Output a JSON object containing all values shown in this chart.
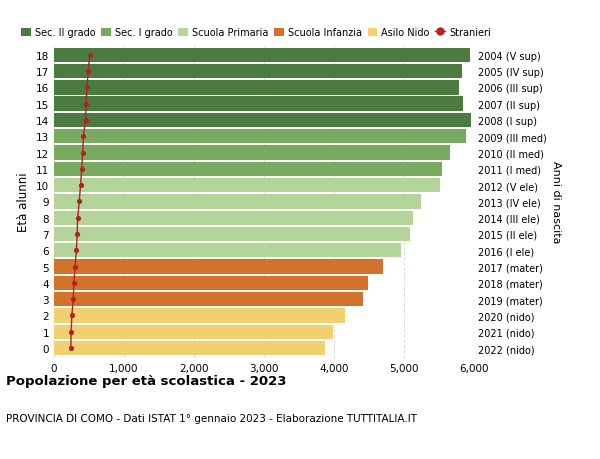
{
  "ages": [
    18,
    17,
    16,
    15,
    14,
    13,
    12,
    11,
    10,
    9,
    8,
    7,
    6,
    5,
    4,
    3,
    2,
    1,
    0
  ],
  "right_labels": [
    "2004 (V sup)",
    "2005 (IV sup)",
    "2006 (III sup)",
    "2007 (II sup)",
    "2008 (I sup)",
    "2009 (III med)",
    "2010 (II med)",
    "2011 (I med)",
    "2012 (V ele)",
    "2013 (IV ele)",
    "2014 (III ele)",
    "2015 (II ele)",
    "2016 (I ele)",
    "2017 (mater)",
    "2018 (mater)",
    "2019 (mater)",
    "2020 (nido)",
    "2021 (nido)",
    "2022 (nido)"
  ],
  "bar_values": [
    5950,
    5830,
    5790,
    5840,
    5960,
    5880,
    5660,
    5540,
    5510,
    5240,
    5130,
    5080,
    4960,
    4700,
    4480,
    4420,
    4160,
    3990,
    3870
  ],
  "stranieri_values": [
    510,
    490,
    470,
    460,
    450,
    420,
    410,
    395,
    380,
    360,
    340,
    330,
    320,
    300,
    285,
    275,
    255,
    245,
    240
  ],
  "bar_colors": [
    "#4a7c3f",
    "#4a7c3f",
    "#4a7c3f",
    "#4a7c3f",
    "#4a7c3f",
    "#7aaa5f",
    "#7aaa5f",
    "#7aaa5f",
    "#b5d49a",
    "#b5d49a",
    "#b5d49a",
    "#b5d49a",
    "#b5d49a",
    "#d4712a",
    "#d4712a",
    "#d4712a",
    "#f0d070",
    "#f0d070",
    "#f0d070"
  ],
  "legend_labels": [
    "Sec. II grado",
    "Sec. I grado",
    "Scuola Primaria",
    "Scuola Infanzia",
    "Asilo Nido",
    "Stranieri"
  ],
  "legend_colors": [
    "#4a7c3f",
    "#7aaa5f",
    "#b5d49a",
    "#d4712a",
    "#f0d070",
    "#b22222"
  ],
  "stranieri_color": "#b22222",
  "title": "Popolazione per età scolastica - 2023",
  "subtitle": "PROVINCIA DI COMO - Dati ISTAT 1° gennaio 2023 - Elaborazione TUTTITALIA.IT",
  "ylabel": "Età alunni",
  "right_ylabel": "Anni di nascita",
  "xlim": [
    0,
    6000
  ],
  "xticks": [
    0,
    1000,
    2000,
    3000,
    4000,
    5000,
    6000
  ],
  "xtick_labels": [
    "0",
    "1,000",
    "2,000",
    "3,000",
    "4,000",
    "5,000",
    "6,000"
  ],
  "bg_color": "#ffffff",
  "grid_color": "#dddddd",
  "bar_height": 0.88
}
